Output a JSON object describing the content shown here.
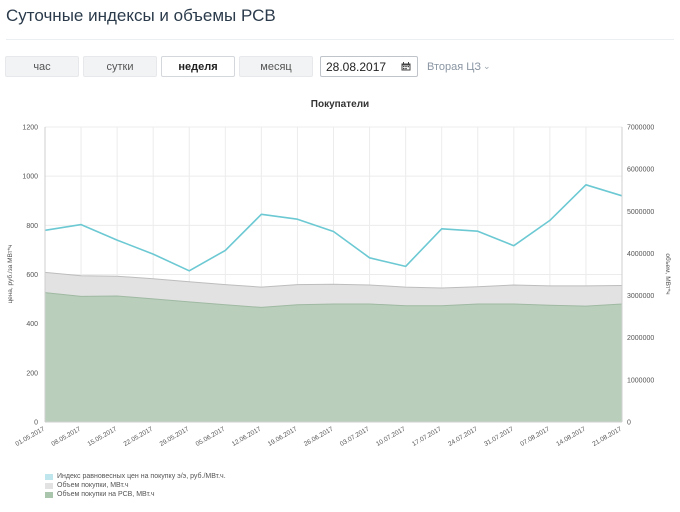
{
  "page": {
    "title": "Суточные индексы и объемы РСВ"
  },
  "controls": {
    "periods": [
      {
        "label": "час",
        "active": false
      },
      {
        "label": "сутки",
        "active": false
      },
      {
        "label": "неделя",
        "active": true
      },
      {
        "label": "месяц",
        "active": false
      }
    ],
    "date_value": "28.08.2017",
    "zone_label": "Вторая ЦЗ",
    "calendar_icon": "calendar-icon",
    "dropdown_icon": "chevron-down-icon"
  },
  "chart_data": {
    "type": "line",
    "title": "Покупатели",
    "ylabel": "цена, руб./за МВт*ч",
    "y2label": "объем, МВт*ч",
    "categories": [
      "01.05.2017",
      "08.05.2017",
      "15.05.2017",
      "22.05.2017",
      "29.05.2017",
      "05.06.2017",
      "12.06.2017",
      "19.06.2017",
      "26.06.2017",
      "03.07.2017",
      "10.07.2017",
      "17.07.2017",
      "24.07.2017",
      "31.07.2017",
      "07.08.2017",
      "14.08.2017",
      "21.08.2017"
    ],
    "ylim": [
      0,
      1200
    ],
    "y2lim": [
      0,
      7000000
    ],
    "yticks": [
      0,
      200,
      400,
      600,
      800,
      1000,
      1200
    ],
    "y2ticks": [
      0,
      1000000,
      2000000,
      3000000,
      4000000,
      5000000,
      6000000,
      7000000
    ],
    "grid": true,
    "legend_position": "bottom-left",
    "series": [
      {
        "name": "Индекс равновесных цен на покупку э/э, руб./МВт.ч.",
        "axis": "left",
        "kind": "line",
        "color": "#6cc9d3",
        "values": [
          780,
          803,
          740,
          683,
          615,
          698,
          845,
          825,
          775,
          668,
          633,
          786,
          776,
          717,
          820,
          965,
          920
        ]
      },
      {
        "name": "Объем покупки, МВт.ч",
        "axis": "right",
        "kind": "area",
        "color": "#e2e2e2",
        "values": [
          3550000,
          3470000,
          3460000,
          3400000,
          3330000,
          3260000,
          3200000,
          3260000,
          3270000,
          3250000,
          3200000,
          3180000,
          3210000,
          3250000,
          3230000,
          3230000,
          3240000
        ]
      },
      {
        "name": "Объем покупки на РСВ, МВт.ч",
        "axis": "right",
        "kind": "area",
        "color": "#b9cfbb",
        "values": [
          3070000,
          2980000,
          2990000,
          2920000,
          2850000,
          2780000,
          2720000,
          2780000,
          2800000,
          2800000,
          2760000,
          2760000,
          2800000,
          2800000,
          2770000,
          2750000,
          2800000
        ]
      }
    ]
  }
}
